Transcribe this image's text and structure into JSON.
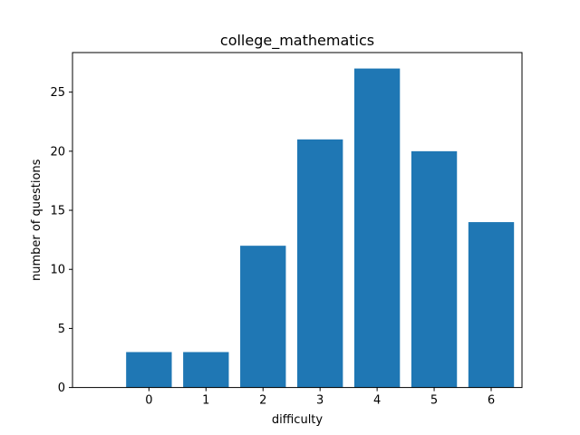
{
  "chart_data": {
    "type": "bar",
    "title": "college_mathematics",
    "xlabel": "difficulty",
    "ylabel": "number of questions",
    "categories": [
      "0",
      "1",
      "2",
      "3",
      "4",
      "5",
      "6"
    ],
    "values": [
      3,
      3,
      12,
      21,
      27,
      20,
      14
    ],
    "ylim": [
      0,
      28.35
    ],
    "yticks": [
      0,
      5,
      10,
      15,
      20,
      25
    ],
    "grid": false,
    "bar_color": "#1f77b4"
  }
}
